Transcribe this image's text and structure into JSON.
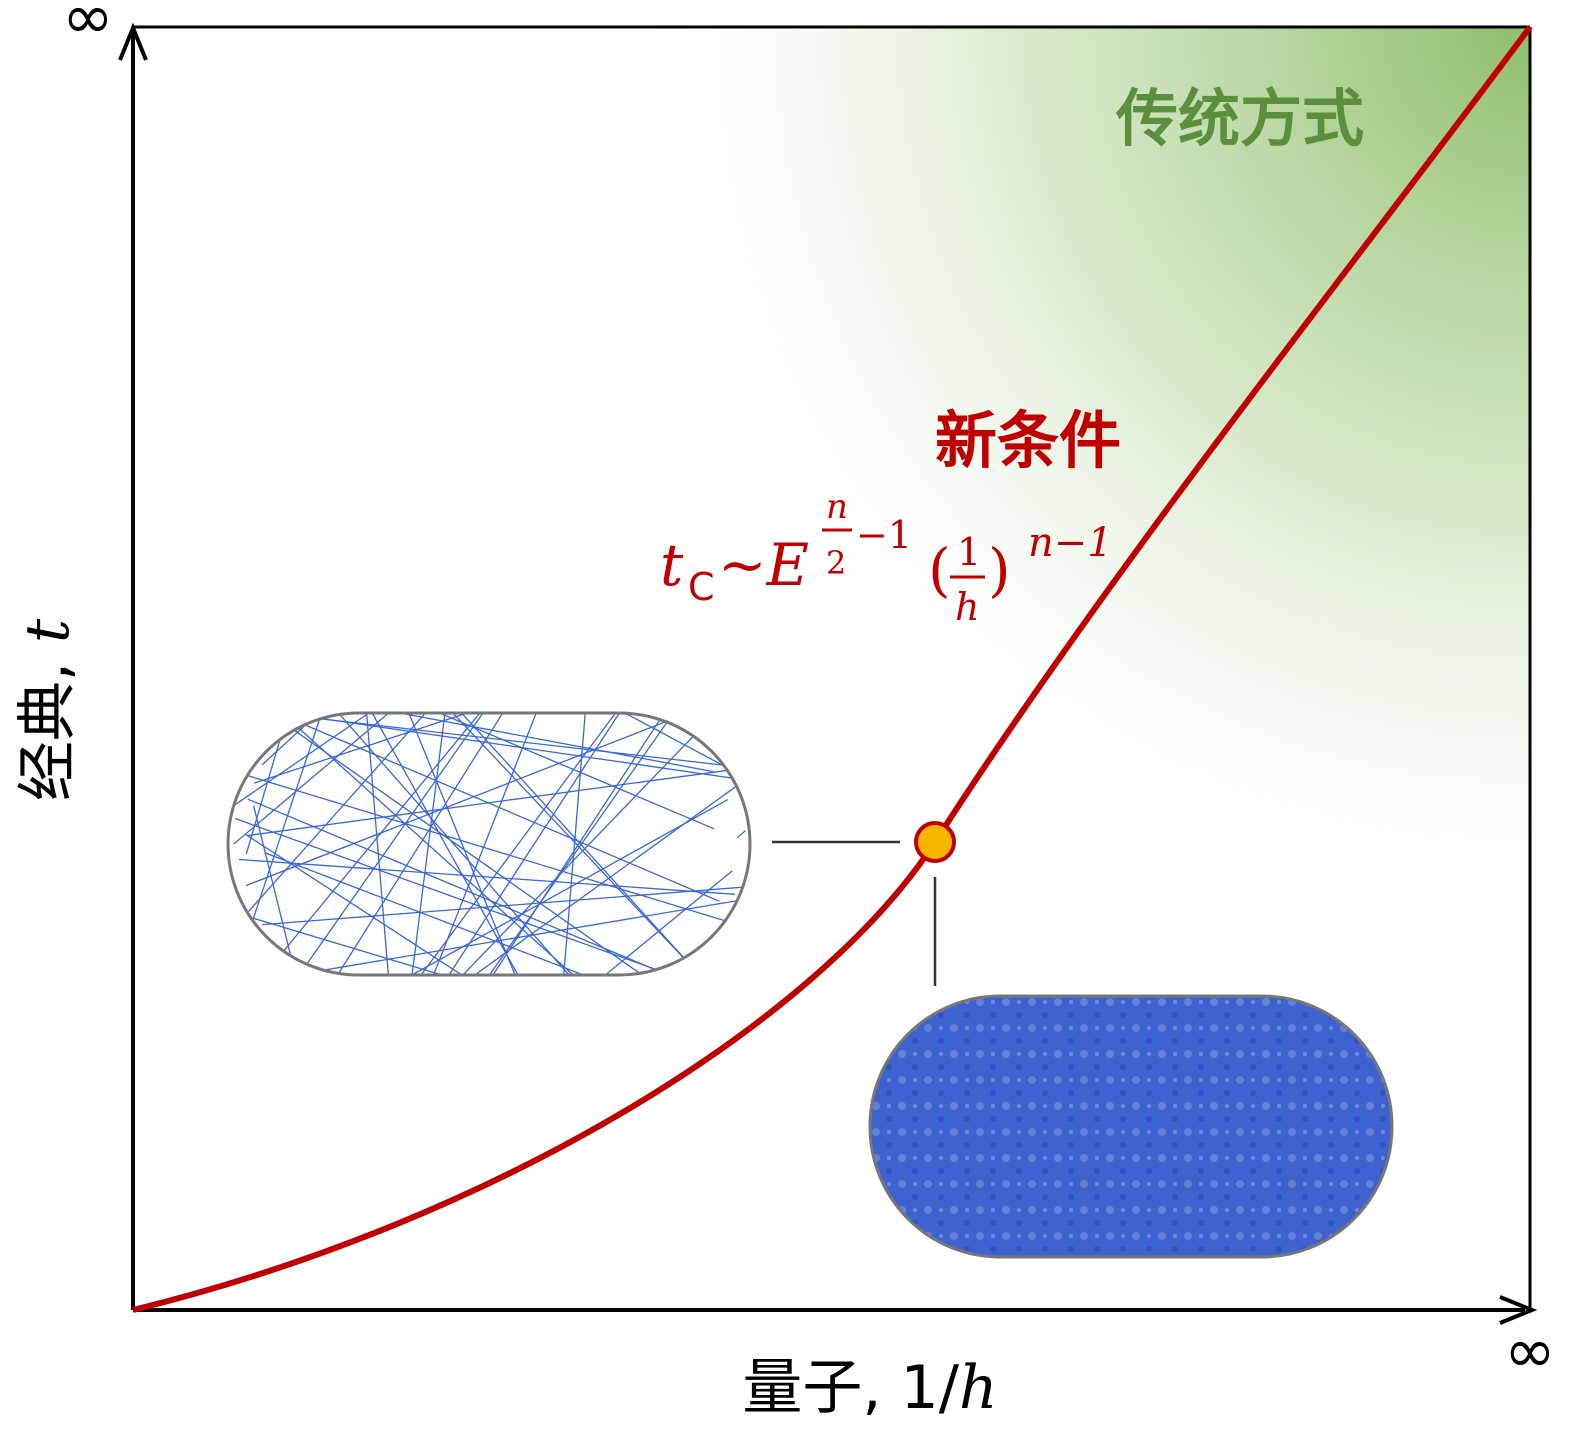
{
  "axes": {
    "y_infinity": "∞",
    "x_infinity": "∞",
    "y_label": {
      "text": "经典, ",
      "var": "t"
    },
    "x_label": {
      "text": "量子, 1/",
      "var": "h"
    }
  },
  "regions": {
    "traditional": "传统方式",
    "new_condition": "新条件"
  },
  "formula": {
    "t": "t",
    "sub": "C",
    "tilde_e": "~E",
    "exp_num": "n",
    "exp_den": "2",
    "exp_rest": "−1",
    "open": "(",
    "frac_num": "1",
    "frac_den": "h",
    "close": ")",
    "power": "n−1"
  }
}
